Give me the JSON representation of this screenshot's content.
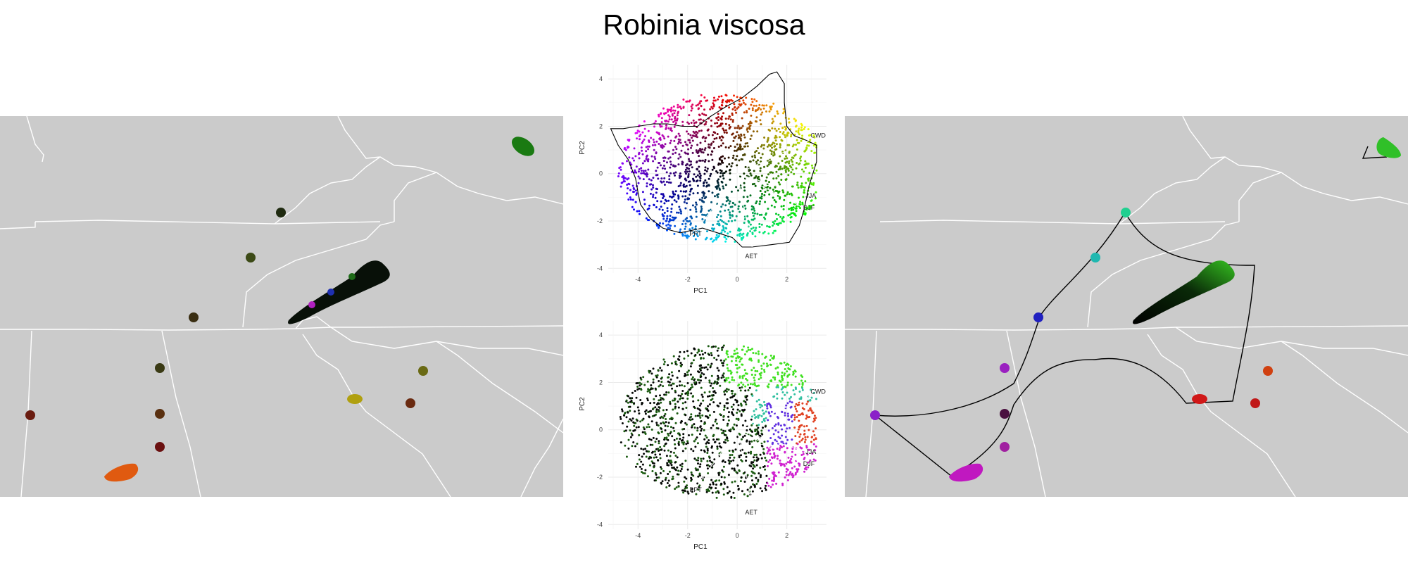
{
  "title": "Robinia viscosa",
  "colors": {
    "map_land": "#cbcbcb",
    "map_border": "#ffffff",
    "grid": "#ebebeb",
    "hull": "#000000"
  },
  "chart_data": [
    {
      "type": "scatter",
      "panel": "pca-top",
      "title": "",
      "xlabel": "PC1",
      "ylabel": "PC2",
      "xlim": [
        -5.2,
        3.6
      ],
      "ylim": [
        -4.2,
        4.6
      ],
      "xticks": [
        -4,
        -2,
        0,
        2
      ],
      "yticks": [
        -4,
        -2,
        0,
        2,
        4
      ],
      "grid": true,
      "coloring": "2D color wheel over PC space (blue upper-left, green top, yellow right, red lower-right, magenta lower-left, black center)",
      "hull": [
        [
          -5.1,
          1.9
        ],
        [
          -4.6,
          1.9
        ],
        [
          -4.0,
          2.0
        ],
        [
          -3.4,
          2.1
        ],
        [
          -2.8,
          2.1
        ],
        [
          -2.2,
          2.0
        ],
        [
          -1.6,
          2.0
        ],
        [
          -1.1,
          2.4
        ],
        [
          -0.5,
          2.8
        ],
        [
          0.2,
          3.2
        ],
        [
          0.8,
          3.7
        ],
        [
          1.3,
          4.2
        ],
        [
          1.6,
          4.3
        ],
        [
          1.9,
          3.8
        ],
        [
          1.9,
          3.0
        ],
        [
          2.0,
          2.0
        ],
        [
          2.3,
          1.6
        ],
        [
          2.8,
          1.4
        ],
        [
          3.2,
          1.2
        ],
        [
          3.2,
          0.5
        ],
        [
          2.9,
          -0.5
        ],
        [
          2.7,
          -1.5
        ],
        [
          2.5,
          -2.2
        ],
        [
          2.1,
          -2.9
        ],
        [
          1.4,
          -3.0
        ],
        [
          0.6,
          -3.1
        ],
        [
          0.2,
          -3.1
        ],
        [
          -0.2,
          -2.7
        ],
        [
          -0.8,
          -2.5
        ],
        [
          -1.4,
          -2.3
        ],
        [
          -2.3,
          -2.5
        ],
        [
          -3.0,
          -2.3
        ],
        [
          -3.5,
          -1.9
        ],
        [
          -3.9,
          -1.3
        ],
        [
          -4.0,
          -0.8
        ],
        [
          -4.1,
          -0.2
        ],
        [
          -4.4,
          0.6
        ],
        [
          -4.8,
          1.2
        ],
        [
          -5.1,
          1.9
        ]
      ],
      "vectors": [
        {
          "label": "CWD",
          "end": [
            2.9,
            1.4
          ]
        },
        {
          "label": "JJA",
          "end": [
            2.7,
            -0.9
          ]
        },
        {
          "label": "DJF",
          "end": [
            2.6,
            -1.4
          ]
        },
        {
          "label": "AET",
          "end": [
            0.6,
            -3.1
          ]
        },
        {
          "label": "PPT",
          "end": [
            -1.7,
            -2.5
          ]
        }
      ],
      "vector_labels": [
        "CWD",
        "JJA",
        "DJF",
        "AET",
        "PPT"
      ]
    },
    {
      "type": "scatter",
      "panel": "pca-bottom",
      "title": "",
      "xlabel": "PC1",
      "ylabel": "PC2",
      "xlim": [
        -5.2,
        3.6
      ],
      "ylim": [
        -4.2,
        4.6
      ],
      "xticks": [
        -4,
        -2,
        0,
        2
      ],
      "yticks": [
        -4,
        -2,
        0,
        2,
        4
      ],
      "grid": true,
      "coloring": "points colored by nearest occurrence cluster color",
      "vectors": [
        {
          "label": "CWD",
          "end": [
            2.9,
            1.4
          ]
        },
        {
          "label": "JJA",
          "end": [
            2.7,
            -0.9
          ]
        },
        {
          "label": "DJF",
          "end": [
            2.6,
            -1.4
          ]
        },
        {
          "label": "AET",
          "end": [
            0.6,
            -3.1
          ]
        },
        {
          "label": "PPT",
          "end": [
            -1.7,
            -2.5
          ]
        }
      ],
      "vector_labels": [
        "CWD",
        "JJA",
        "DJF",
        "AET",
        "PPT"
      ]
    }
  ]
}
